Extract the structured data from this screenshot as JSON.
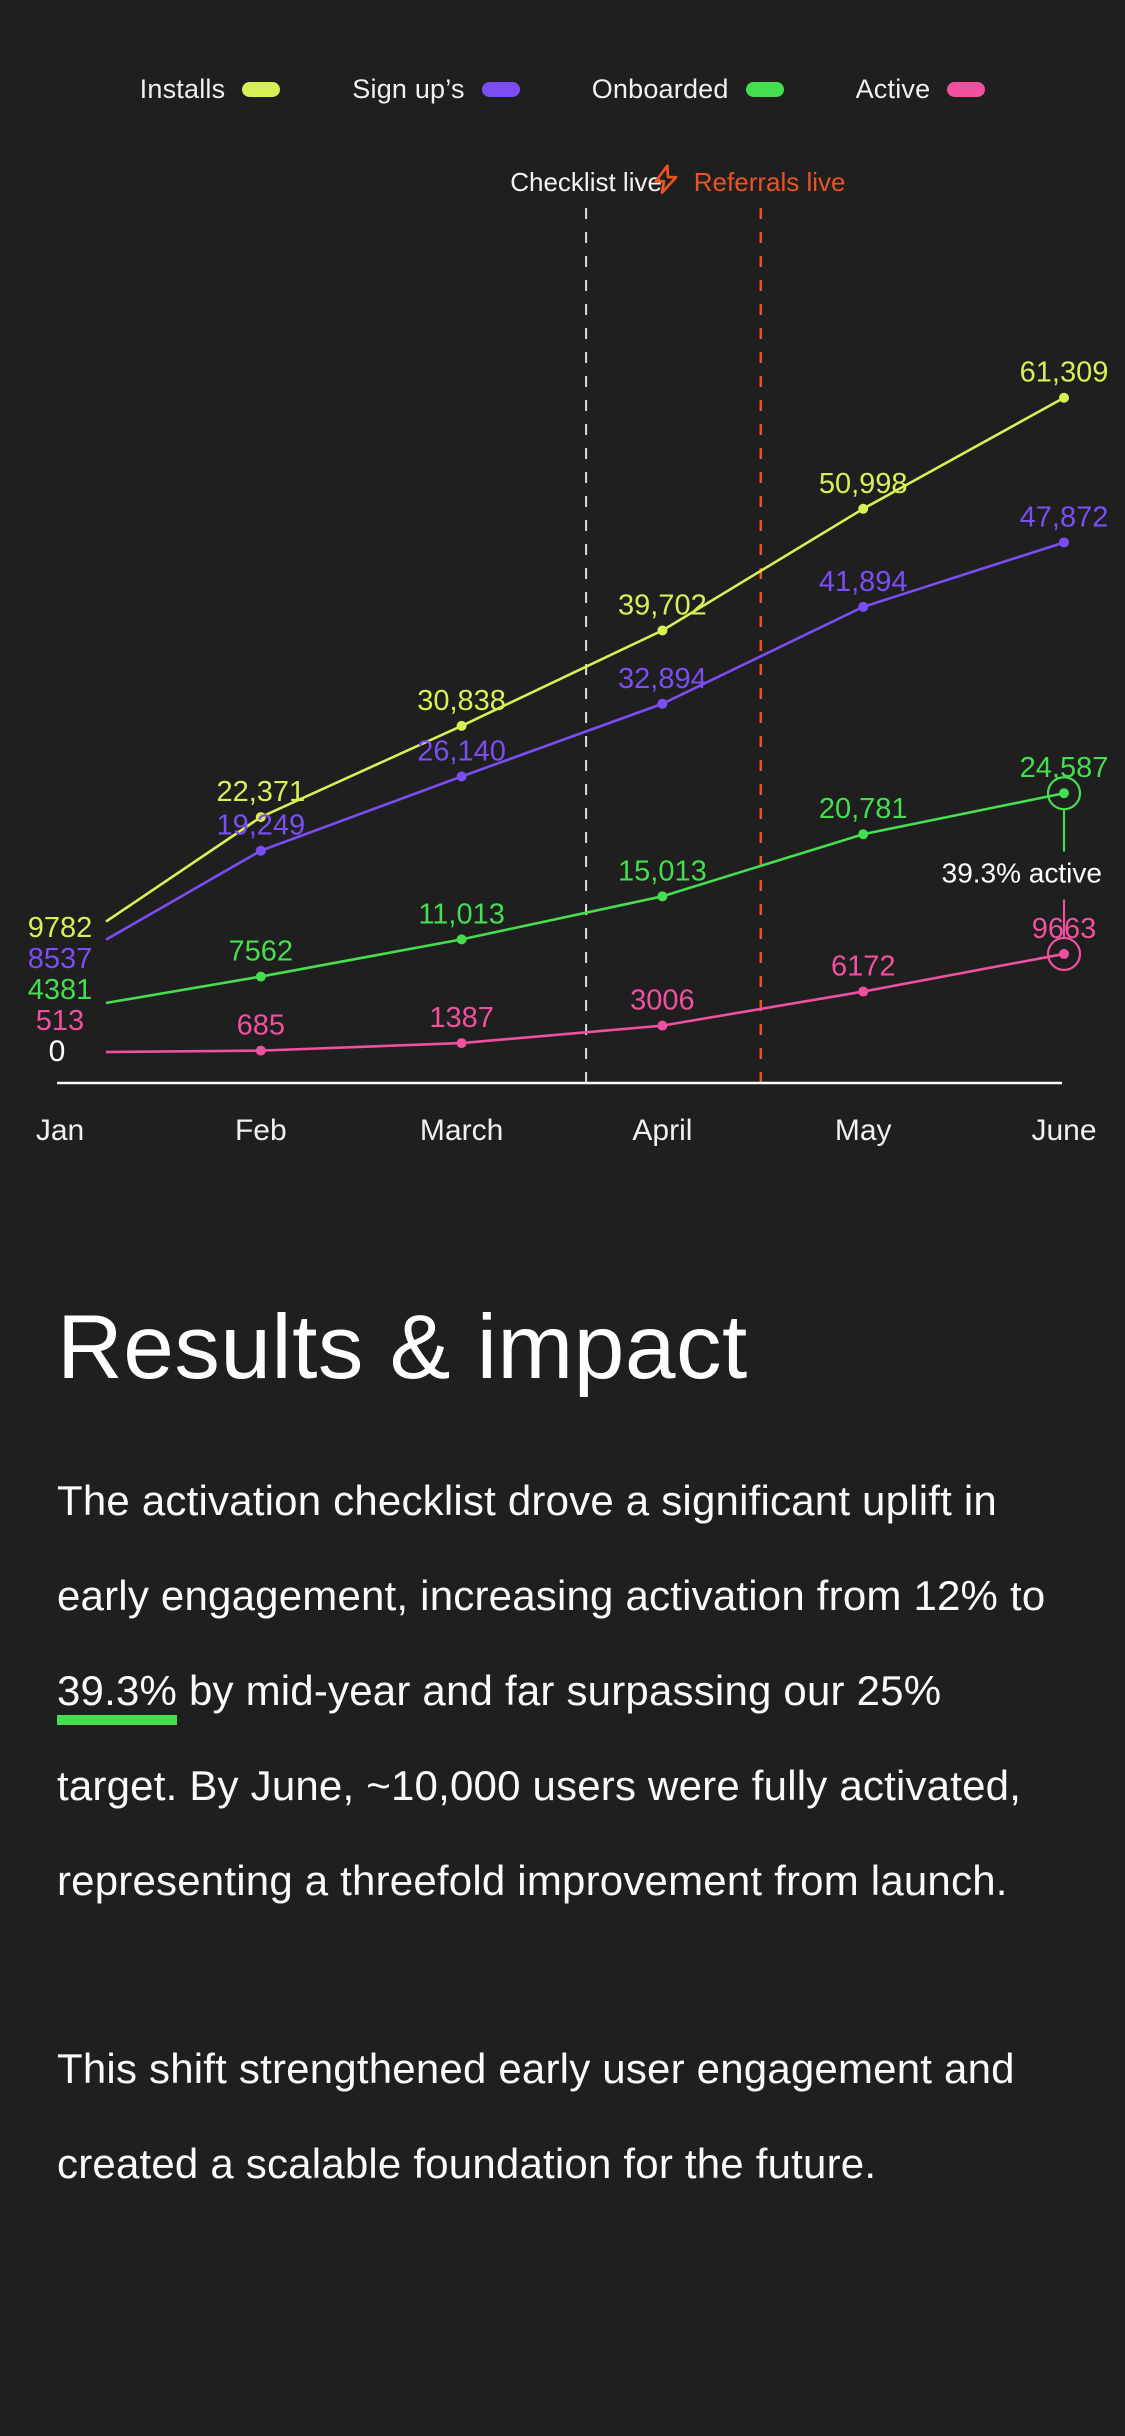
{
  "legend": [
    {
      "label": "Installs",
      "color": "#d8ef55"
    },
    {
      "label": "Sign up’s",
      "color": "#7b4ef3"
    },
    {
      "label": "Onboarded",
      "color": "#44de4e"
    },
    {
      "label": "Active",
      "color": "#f0509f"
    }
  ],
  "chart_data": {
    "type": "line",
    "x": [
      "Jan",
      "Feb",
      "March",
      "April",
      "May",
      "June"
    ],
    "series": [
      {
        "name": "Installs",
        "color": "#d8ef55",
        "values": [
          9782,
          22371,
          30838,
          39702,
          50998,
          61309
        ],
        "labels": [
          "9782",
          "22,371",
          "30,838",
          "39,702",
          "50,998",
          "61,309"
        ],
        "circle_last": false
      },
      {
        "name": "Sign up’s",
        "color": "#7b4ef3",
        "values": [
          8537,
          19249,
          26140,
          32894,
          41894,
          47872
        ],
        "labels": [
          "8537",
          "19,249",
          "26,140",
          "32,894",
          "41,894",
          "47,872"
        ],
        "circle_last": false
      },
      {
        "name": "Onboarded",
        "color": "#44de4e",
        "values": [
          4381,
          7562,
          11013,
          15013,
          20781,
          24587
        ],
        "labels": [
          "4381",
          "7562",
          "11,013",
          "15,013",
          "20,781",
          "24,587"
        ],
        "circle_last": true
      },
      {
        "name": "Active",
        "color": "#f0509f",
        "values": [
          513,
          685,
          1387,
          3006,
          6172,
          9663
        ],
        "labels": [
          "513",
          "685",
          "1387",
          "3006",
          "6172",
          "9663"
        ],
        "circle_last": true
      }
    ],
    "ylim": [
      0,
      65000
    ],
    "origin_label": "0",
    "grid": false,
    "legend_position": "top",
    "events": [
      {
        "label": "Checklist live",
        "color": "#f5f3f0",
        "line_color": "#dcdcdc",
        "month_frac": 2.62,
        "icon": null
      },
      {
        "label": "Referrals live",
        "color": "#ea5420",
        "line_color": "#ea5420",
        "month_frac": 3.49,
        "icon": "lightning-bolt"
      }
    ],
    "callout": {
      "text": "39.3% active",
      "color": "#fdfdfd",
      "between": [
        "Onboarded",
        "Active"
      ],
      "month": "June"
    }
  },
  "results": {
    "heading": "Results & impact",
    "p1_before": "The activation checklist drove a significant uplift in early engagement, increasing activation from 12% to ",
    "p1_highlight": "39.3%",
    "p1_highlight_underline_color": "#44de4e",
    "p1_after": " by mid-year and far surpassing our 25% target. By June, ~10,000 users were fully activated, representing a threefold improvement from launch.",
    "p2": "This shift strengthened early user engagement and created a scalable foundation for the future."
  }
}
